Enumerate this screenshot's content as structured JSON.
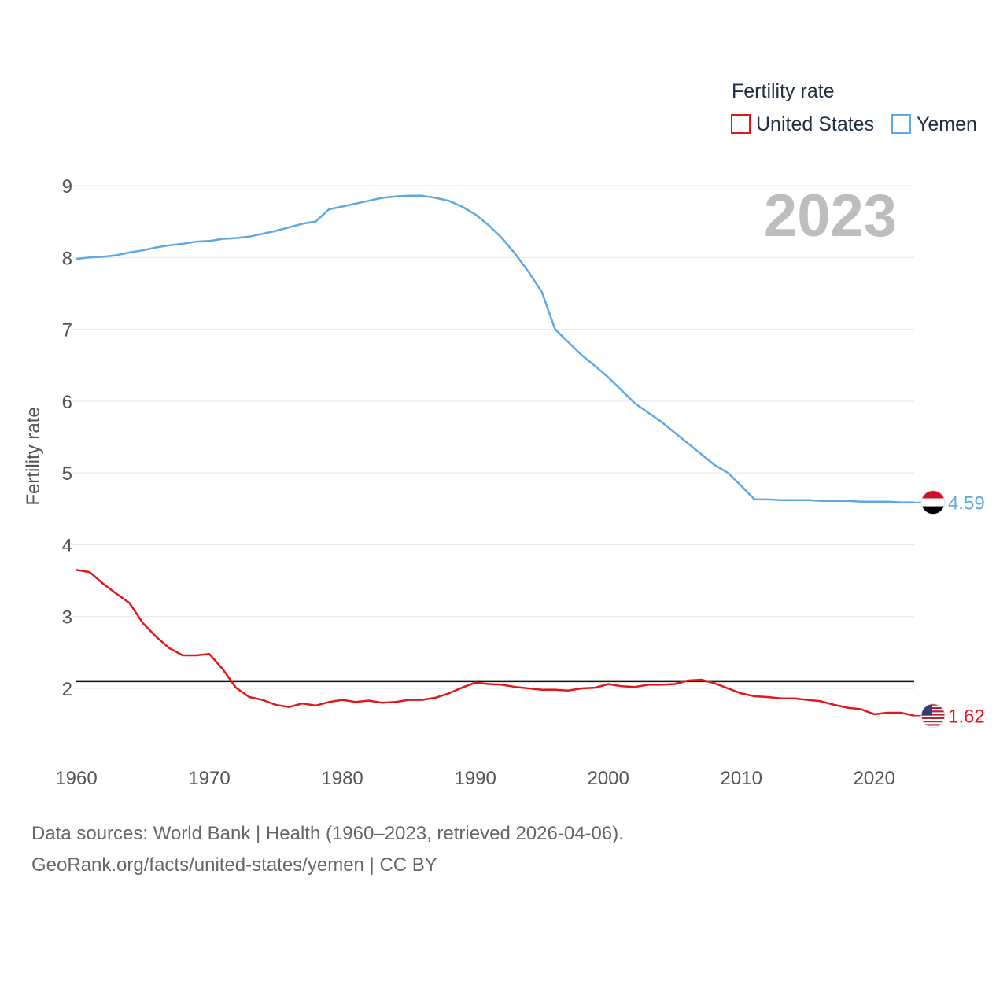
{
  "chart_data": {
    "type": "line",
    "title": "",
    "ylabel": "Fertility rate",
    "xlabel": "",
    "watermark_year": "2023",
    "legend": {
      "title": "Fertility rate",
      "placement": "top-right"
    },
    "xlim": [
      1960,
      2023
    ],
    "ylim": [
      1.0,
      9.5
    ],
    "x_ticks": [
      1960,
      1970,
      1980,
      1990,
      2000,
      2010,
      2020
    ],
    "y_ticks": [
      2,
      3,
      4,
      5,
      6,
      7,
      8,
      9
    ],
    "reference_line": {
      "y": 2.1,
      "color": "#111111"
    },
    "x": [
      1960,
      1961,
      1962,
      1963,
      1964,
      1965,
      1966,
      1967,
      1968,
      1969,
      1970,
      1971,
      1972,
      1973,
      1974,
      1975,
      1976,
      1977,
      1978,
      1979,
      1980,
      1981,
      1982,
      1983,
      1984,
      1985,
      1986,
      1987,
      1988,
      1989,
      1990,
      1991,
      1992,
      1993,
      1994,
      1995,
      1996,
      1997,
      1998,
      1999,
      2000,
      2001,
      2002,
      2003,
      2004,
      2005,
      2006,
      2007,
      2008,
      2009,
      2010,
      2011,
      2012,
      2013,
      2014,
      2015,
      2016,
      2017,
      2018,
      2019,
      2020,
      2021,
      2022,
      2023
    ],
    "series": [
      {
        "name": "United States",
        "color": "#e3161b",
        "end_label": "1.62",
        "values": [
          3.65,
          3.62,
          3.46,
          3.32,
          3.19,
          2.91,
          2.72,
          2.56,
          2.46,
          2.46,
          2.48,
          2.27,
          2.01,
          1.88,
          1.84,
          1.77,
          1.74,
          1.79,
          1.76,
          1.81,
          1.84,
          1.81,
          1.83,
          1.8,
          1.81,
          1.84,
          1.84,
          1.87,
          1.93,
          2.01,
          2.08,
          2.06,
          2.05,
          2.02,
          2.0,
          1.98,
          1.98,
          1.97,
          2.0,
          2.01,
          2.06,
          2.03,
          2.02,
          2.05,
          2.05,
          2.06,
          2.11,
          2.12,
          2.07,
          2.0,
          1.93,
          1.89,
          1.88,
          1.86,
          1.86,
          1.84,
          1.82,
          1.77,
          1.73,
          1.71,
          1.64,
          1.66,
          1.66,
          1.62
        ]
      },
      {
        "name": "Yemen",
        "color": "#5fa8e6",
        "end_label": "4.59",
        "values": [
          7.98,
          8.0,
          8.01,
          8.03,
          8.07,
          8.1,
          8.14,
          8.17,
          8.19,
          8.22,
          8.23,
          8.26,
          8.27,
          8.29,
          8.33,
          8.37,
          8.42,
          8.47,
          8.5,
          8.67,
          8.71,
          8.75,
          8.79,
          8.83,
          8.85,
          8.86,
          8.86,
          8.83,
          8.79,
          8.71,
          8.6,
          8.45,
          8.27,
          8.05,
          7.8,
          7.52,
          7.0,
          6.82,
          6.64,
          6.49,
          6.33,
          6.15,
          5.97,
          5.84,
          5.71,
          5.56,
          5.41,
          5.26,
          5.11,
          5.0,
          4.82,
          4.63,
          4.63,
          4.62,
          4.62,
          4.62,
          4.61,
          4.61,
          4.61,
          4.6,
          4.6,
          4.6,
          4.59,
          4.59
        ]
      }
    ]
  },
  "footer": {
    "line1": "Data sources: World Bank | Health (1960–2023, retrieved 2026-04-06).",
    "line2": "GeoRank.org/facts/united-states/yemen | CC BY"
  }
}
